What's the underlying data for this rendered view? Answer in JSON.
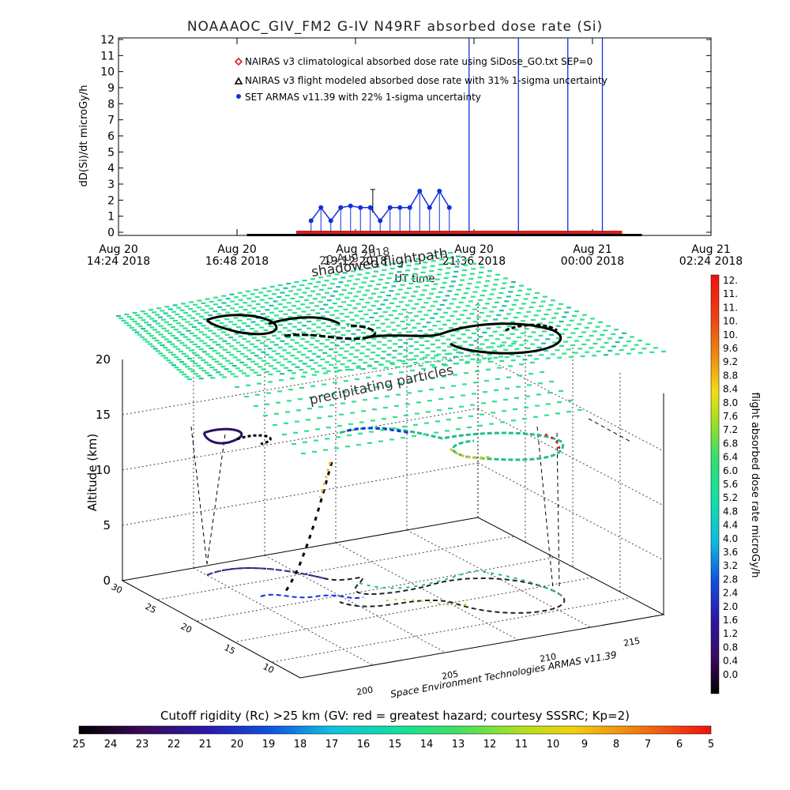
{
  "title": "NOAAAOC_GIV_FM2 G-IV    N49RF  absorbed dose rate (Si)",
  "top_chart": {
    "ylabel": "dD(Si)/dt microGy/h",
    "yticks": [
      "0",
      "1",
      "2",
      "3",
      "4",
      "5",
      "6",
      "7",
      "8",
      "9",
      "10",
      "11",
      "12"
    ],
    "xticks": [
      {
        "line1": "Aug 20",
        "line2": "14:24 2018"
      },
      {
        "line1": "Aug 20",
        "line2": "16:48 2018"
      },
      {
        "line1": "Aug 20",
        "line2": "19:12 2018"
      },
      {
        "line1": "Aug 20",
        "line2": "21:36 2018"
      },
      {
        "line1": "Aug 21",
        "line2": "00:00 2018"
      },
      {
        "line1": "Aug 21",
        "line2": "02:24 2018"
      }
    ],
    "xlabel": "UT time",
    "legend": [
      {
        "label": "NAIRAS v3 climatological absorbed dose rate using SiDose_GO.txt SEP=0",
        "color": "#d62020",
        "symbol": "diamond"
      },
      {
        "label": "NAIRAS v3 flight modeled absorbed dose rate with 31% 1-sigma uncertainty",
        "color": "#000000",
        "symbol": "triangle"
      },
      {
        "label": "SET ARMAS v11.39 with 22% 1-sigma uncertainty",
        "color": "#1030e0",
        "symbol": "circle"
      }
    ]
  },
  "chart_data": {
    "type": "scatter",
    "title": "NOAAAOC_GIV_FM2 G-IV    N49RF  absorbed dose rate (Si)",
    "xlabel": "UT time",
    "ylabel": "dD(Si)/dt microGy/h",
    "ylim": [
      0,
      12
    ],
    "xlim_hours": [
      14.4,
      26.4
    ],
    "series": [
      {
        "name": "NAIRAS v3 climatological absorbed dose rate using SiDose_GO.txt SEP=0",
        "color": "#d62020",
        "x_hours": [
          18.0,
          19.0,
          20.0,
          21.0,
          22.0,
          23.0,
          24.0,
          24.5
        ],
        "values": [
          0.1,
          0.1,
          0.15,
          0.15,
          0.15,
          0.15,
          0.15,
          0.1
        ]
      },
      {
        "name": "NAIRAS v3 flight modeled absorbed dose rate with 31% 1-sigma uncertainty",
        "color": "#000000",
        "x_hours": [
          17.0,
          18.0,
          19.0,
          20.0,
          21.0,
          22.0,
          23.0,
          24.0,
          25.0
        ],
        "values": [
          -0.1,
          -0.1,
          -0.05,
          0,
          0,
          0,
          0,
          0,
          -0.1
        ]
      },
      {
        "name": "SET ARMAS v11.39 with 22% 1-sigma uncertainty",
        "color": "#1030e0",
        "x_hours": [
          18.3,
          18.5,
          18.7,
          18.9,
          19.1,
          19.3,
          19.5,
          19.7,
          19.9,
          20.1,
          20.3,
          20.5,
          20.7,
          20.9,
          21.1,
          21.5,
          22.5,
          23.5,
          24.2
        ],
        "values": [
          0.7,
          1.5,
          0.7,
          1.5,
          1.6,
          1.5,
          1.5,
          0.7,
          1.5,
          1.5,
          1.5,
          2.5,
          1.5,
          2.5,
          1.5,
          12,
          12,
          12,
          12
        ]
      }
    ]
  },
  "plot3d": {
    "zlabel": "Altitude (km)",
    "zticks": [
      "0",
      "5",
      "10",
      "15",
      "20"
    ],
    "xticks": [
      "10",
      "15",
      "20",
      "25",
      "30"
    ],
    "yticks": [
      "200",
      "205",
      "210",
      "215"
    ],
    "footer_label": "Space Environment Technologies ARMAS v11.39",
    "annotation_shadow": "shadowed flightpath",
    "annotation_shadow_overlap": "20 Aug 2018",
    "annotation_precip": "precipitating particles"
  },
  "colorbar_right": {
    "label": "flight absorbed dose rate microGy/h",
    "ticks": [
      "12.",
      "11.",
      "11.",
      "10.",
      "10.",
      "9.6",
      "9.2",
      "8.8",
      "8.4",
      "8.0",
      "7.6",
      "7.2",
      "6.8",
      "6.4",
      "6.0",
      "5.6",
      "5.2",
      "4.8",
      "4.4",
      "4.0",
      "3.6",
      "3.2",
      "2.8",
      "2.4",
      "2.0",
      "1.6",
      "1.2",
      "0.8",
      "0.4",
      "0.0"
    ]
  },
  "colorbar_bottom": {
    "label": "Cutoff rigidity (Rc) >25 km (GV: red = greatest hazard; courtesy SSSRC; Kp=2)",
    "ticks": [
      "25",
      "24",
      "23",
      "22",
      "21",
      "20",
      "19",
      "18",
      "17",
      "16",
      "15",
      "14",
      "13",
      "12",
      "11",
      "10",
      "9",
      "8",
      "7",
      "6",
      "5"
    ]
  }
}
